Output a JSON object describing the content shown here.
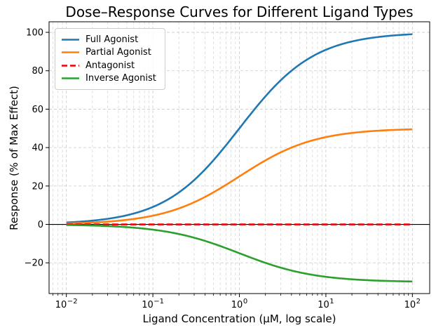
{
  "figure": {
    "title": "Dose–Response Curves for Different Ligand Types",
    "xlabel": "Ligand Concentration (μM, log scale)",
    "ylabel": "Response (% of Max Effect)",
    "background": "#ffffff"
  },
  "chart_data": {
    "type": "line",
    "title": "Dose–Response Curves for Different Ligand Types",
    "xlabel": "Ligand Concentration (μM, log scale)",
    "ylabel": "Response (% of Max Effect)",
    "x_scale": "log",
    "x_range_uM": [
      0.01,
      100
    ],
    "xlim_log10": [
      -2.2,
      2.2
    ],
    "ylim": [
      -36,
      105.5
    ],
    "grid": {
      "visible": true,
      "style": "dashed",
      "color": "#c9c9c9",
      "minor_color": "#d4d4d4",
      "minor": true
    },
    "zero_line": {
      "y": 0,
      "color": "#000000"
    },
    "x_major_ticks": [
      {
        "log10": -2,
        "mantissa": "10",
        "exp": "−2"
      },
      {
        "log10": -1,
        "mantissa": "10",
        "exp": "−1"
      },
      {
        "log10": 0,
        "mantissa": "10",
        "exp": "0"
      },
      {
        "log10": 1,
        "mantissa": "10",
        "exp": "1"
      },
      {
        "log10": 2,
        "mantissa": "10",
        "exp": "2"
      }
    ],
    "y_major_ticks": [
      {
        "value": -20,
        "label": "−20"
      },
      {
        "value": 0,
        "label": "0"
      },
      {
        "value": 20,
        "label": "20"
      },
      {
        "value": 40,
        "label": "40"
      },
      {
        "value": 60,
        "label": "60"
      },
      {
        "value": 80,
        "label": "80"
      },
      {
        "value": 100,
        "label": "100"
      }
    ],
    "series": [
      {
        "name": "Full Agonist",
        "color": "#1f77b4",
        "line_style": "solid",
        "model": "hill",
        "emax": 100,
        "ec50_uM": 1.0
      },
      {
        "name": "Partial Agonist",
        "color": "#ff7f0e",
        "line_style": "solid",
        "model": "hill",
        "emax": 50,
        "ec50_uM": 1.0
      },
      {
        "name": "Antagonist",
        "color": "#ee0000",
        "line_style": "dashed",
        "model": "hill",
        "emax": 0,
        "ec50_uM": 1.0
      },
      {
        "name": "Inverse Agonist",
        "color": "#2ca02c",
        "line_style": "solid",
        "model": "hill",
        "emax": -30,
        "ec50_uM": 1.0
      }
    ],
    "sample_points": {
      "x_uM": [
        0.01,
        0.1,
        1,
        10,
        100
      ],
      "full_agonist": [
        0.99,
        9.09,
        50.0,
        90.91,
        99.01
      ],
      "partial_agonist": [
        0.5,
        4.55,
        25.0,
        45.45,
        49.5
      ],
      "antagonist": [
        0,
        0,
        0,
        0,
        0
      ],
      "inverse_agonist": [
        -0.3,
        -2.73,
        -15.0,
        -27.27,
        -29.7
      ]
    },
    "legend": {
      "position": "upper left"
    }
  }
}
